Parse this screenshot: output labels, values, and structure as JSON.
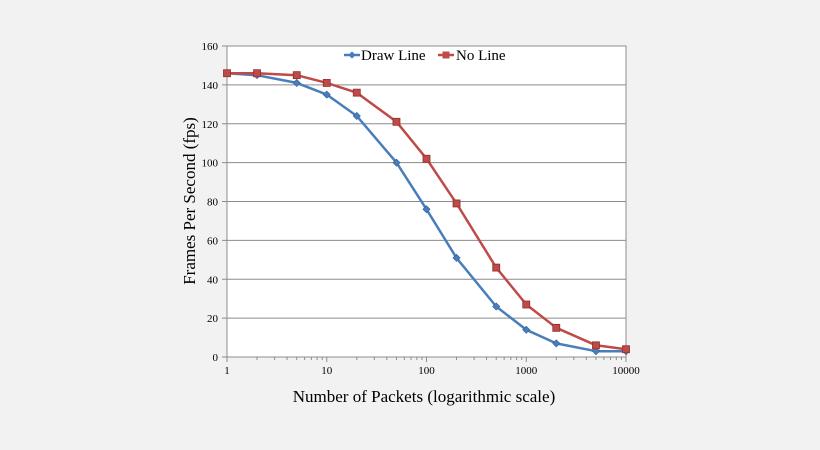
{
  "chart_data": {
    "type": "line",
    "title": "",
    "xlabel": "Number of Packets (logarithmic scale)",
    "ylabel": "Frames Per Second (fps)",
    "x_scale": "log",
    "xlim": [
      1,
      10000
    ],
    "ylim": [
      0,
      160
    ],
    "x_ticks": [
      1,
      10,
      100,
      1000,
      10000
    ],
    "x_tick_labels": [
      "1",
      "10",
      "100",
      "1000",
      "10000"
    ],
    "y_ticks": [
      0,
      20,
      40,
      60,
      80,
      100,
      120,
      140,
      160
    ],
    "y_tick_labels": [
      "0",
      "20",
      "40",
      "60",
      "80",
      "100",
      "120",
      "140",
      "160"
    ],
    "grid": "horizontal",
    "legend_position": "top-center",
    "x": [
      1,
      2,
      5,
      10,
      20,
      50,
      100,
      200,
      500,
      1000,
      2000,
      5000,
      10000
    ],
    "series": [
      {
        "name": "Draw Line",
        "color": "#4a7ebb",
        "marker": "diamond",
        "values": [
          146,
          145,
          141,
          135,
          124,
          100,
          76,
          51,
          26,
          14,
          7,
          3,
          3
        ]
      },
      {
        "name": "No Line",
        "color": "#be4b48",
        "marker": "square",
        "values": [
          146,
          146,
          145,
          141,
          136,
          121,
          102,
          79,
          46,
          27,
          15,
          6,
          4
        ]
      }
    ]
  }
}
